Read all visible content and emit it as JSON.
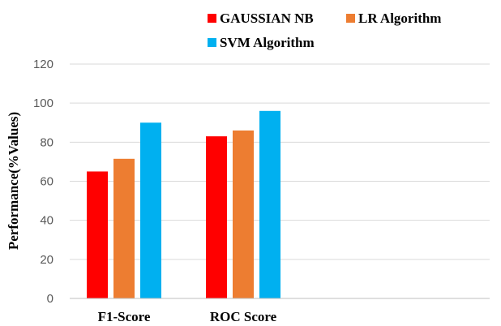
{
  "chart_data": {
    "type": "bar",
    "categories": [
      "F1-Score",
      "ROC Score"
    ],
    "series": [
      {
        "name": "GAUSSIAN NB",
        "color": "#ff0000",
        "values": [
          65,
          83
        ]
      },
      {
        "name": "LR Algorithm",
        "color": "#ed7d31",
        "values": [
          71.5,
          86
        ]
      },
      {
        "name": "SVM Algorithm",
        "color": "#00b0f0",
        "values": [
          90,
          96
        ]
      }
    ],
    "title": "",
    "xlabel": "",
    "ylabel": "Performance(%Values)",
    "ylim": [
      0,
      120
    ],
    "yticks": [
      0,
      20,
      40,
      60,
      80,
      100,
      120
    ],
    "grid": true,
    "legend_position": "top"
  }
}
